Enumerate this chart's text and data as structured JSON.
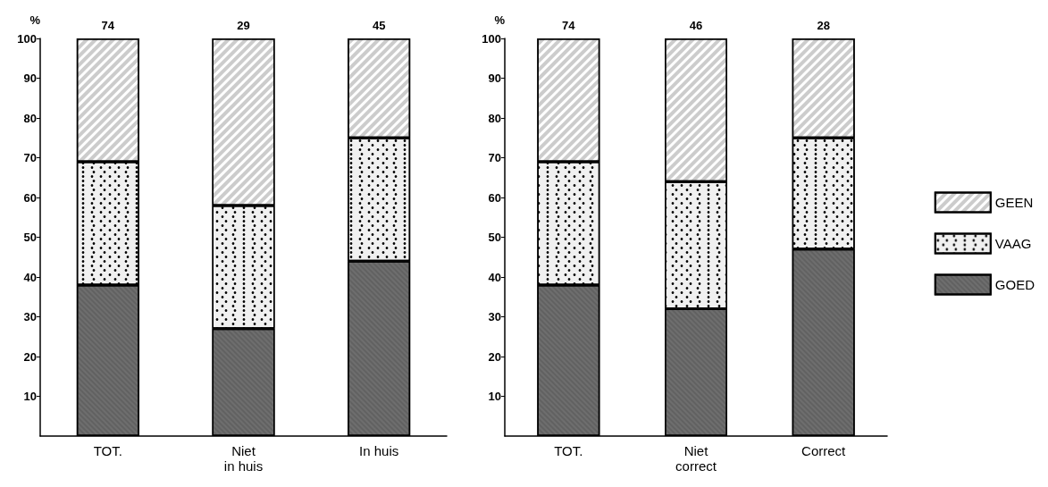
{
  "chart_data": [
    {
      "type": "bar",
      "stacked": true,
      "ylabel": "%",
      "categories": [
        "TOT.",
        "Niet\nin huis",
        "In huis"
      ],
      "ylim": [
        0,
        100
      ],
      "yticks": [
        10,
        20,
        30,
        40,
        50,
        60,
        70,
        80,
        90,
        100
      ],
      "grid": false,
      "legend": false,
      "series": [
        {
          "name": "GOED",
          "color": "#6e6e6e",
          "values": [
            38,
            27,
            44
          ]
        },
        {
          "name": "VAAG",
          "color": "#f0f0f0",
          "values": [
            31,
            31,
            31
          ]
        },
        {
          "name": "GEEN",
          "color": "#ffffff",
          "values": [
            31,
            42,
            25
          ]
        }
      ],
      "annotations": [
        {
          "text": "74",
          "x": "TOT.",
          "y": 100
        },
        {
          "text": "29",
          "x": "Niet\nin huis",
          "y": 100
        },
        {
          "text": "45",
          "x": "In huis",
          "y": 100
        }
      ]
    },
    {
      "type": "bar",
      "stacked": true,
      "ylabel": "%",
      "categories": [
        "TOT.",
        "Niet\ncorrect",
        "Correct"
      ],
      "ylim": [
        0,
        100
      ],
      "yticks": [
        10,
        20,
        30,
        40,
        50,
        60,
        70,
        80,
        90,
        100
      ],
      "grid": false,
      "legend": "right",
      "series": [
        {
          "name": "GOED",
          "color": "#6e6e6e",
          "values": [
            38,
            32,
            47
          ]
        },
        {
          "name": "VAAG",
          "color": "#f0f0f0",
          "values": [
            31,
            32,
            28
          ]
        },
        {
          "name": "GEEN",
          "color": "#ffffff",
          "values": [
            31,
            36,
            25
          ]
        }
      ],
      "annotations": [
        {
          "text": "74",
          "x": "TOT.",
          "y": 100
        },
        {
          "text": "46",
          "x": "Niet\ncorrect",
          "y": 100
        },
        {
          "text": "28",
          "x": "Correct",
          "y": 100
        }
      ]
    }
  ]
}
